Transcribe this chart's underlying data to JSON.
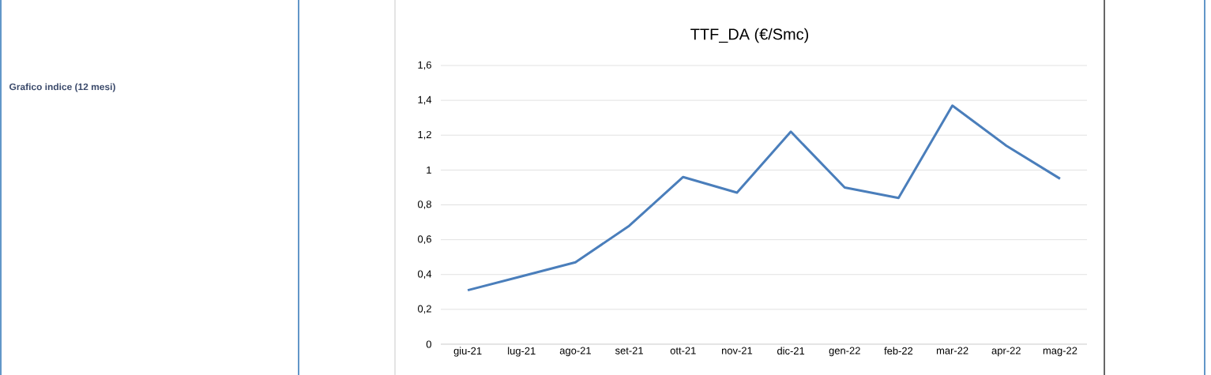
{
  "chart_data": {
    "type": "line",
    "title": "TTF_DA (€/Smc)",
    "categories": [
      "giu-21",
      "lug-21",
      "ago-21",
      "set-21",
      "ott-21",
      "nov-21",
      "dic-21",
      "gen-22",
      "feb-22",
      "mar-22",
      "apr-22",
      "mag-22"
    ],
    "series": [
      {
        "color": "#4a7ebb",
        "values": [
          0.31,
          0.39,
          0.47,
          0.68,
          0.96,
          0.87,
          1.22,
          0.9,
          0.84,
          1.37,
          1.14,
          0.95
        ]
      }
    ],
    "ylim": [
      0,
      1.6
    ],
    "yticks": [
      0,
      {
        "value": 0.2,
        "label": "0,2"
      },
      {
        "value": 0.4,
        "label": "0,4"
      },
      {
        "value": 0.6,
        "label": "0,6"
      },
      {
        "value": 0.8,
        "label": "0,8"
      },
      1,
      {
        "value": 1.2,
        "label": "1,2"
      },
      {
        "value": 1.4,
        "label": "1,4"
      },
      {
        "value": 1.6,
        "label": "1,6"
      }
    ],
    "grid": "y",
    "marker": "none",
    "line_style": "solid",
    "annotations": [
      "Grafico indice (12 mesi)"
    ]
  }
}
